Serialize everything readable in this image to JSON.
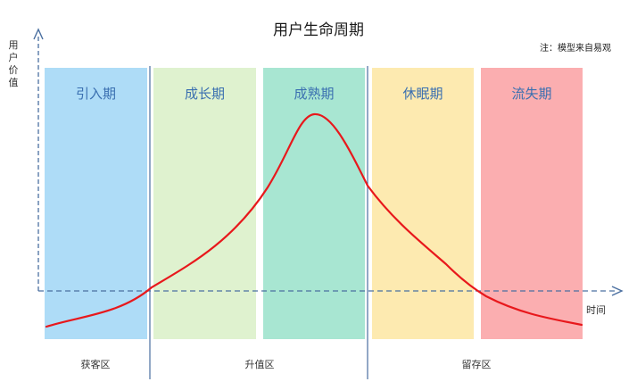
{
  "title": "用户生命周期",
  "note": "注：模型来自易观",
  "y_axis_label": "用户价值",
  "x_axis_label": "时间",
  "stages": [
    {
      "label": "引入期",
      "color": "#aedcf7"
    },
    {
      "label": "成长期",
      "color": "#dff2cf"
    },
    {
      "label": "成熟期",
      "color": "#a8e6d2"
    },
    {
      "label": "休眠期",
      "color": "#fdeab0"
    },
    {
      "label": "流失期",
      "color": "#fbaeb0"
    }
  ],
  "stage_label_color": "#3a6fb0",
  "curve_color": "#e8181c",
  "axis_color": "#4a6fa0",
  "zones": [
    {
      "label": "获客区"
    },
    {
      "label": "升值区"
    },
    {
      "label": "留存区"
    }
  ]
}
